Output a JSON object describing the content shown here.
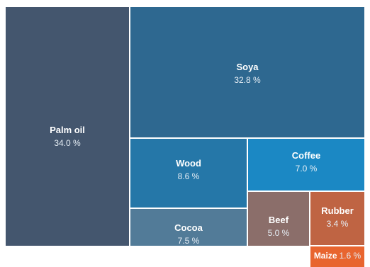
{
  "chart_data": {
    "type": "treemap",
    "title": "",
    "unit": "%",
    "items": [
      {
        "name": "Palm oil",
        "value": 34.0,
        "label": "34.0 %",
        "color": "#44566e"
      },
      {
        "name": "Soya",
        "value": 32.8,
        "label": "32.8 %",
        "color": "#2e6890"
      },
      {
        "name": "Wood",
        "value": 8.6,
        "label": "8.6 %",
        "color": "#2577a8"
      },
      {
        "name": "Coffee",
        "value": 7.0,
        "label": "7.0 %",
        "color": "#1b88c4"
      },
      {
        "name": "Cocoa",
        "value": 7.5,
        "label": "7.5 %",
        "color": "#527b98"
      },
      {
        "name": "Beef",
        "value": 5.0,
        "label": "5.0 %",
        "color": "#8b6e6a"
      },
      {
        "name": "Rubber",
        "value": 3.4,
        "label": "3.4 %",
        "color": "#bf6443"
      },
      {
        "name": "Maize",
        "value": 1.6,
        "label": "1.6 %",
        "color": "#e8652f"
      }
    ]
  }
}
